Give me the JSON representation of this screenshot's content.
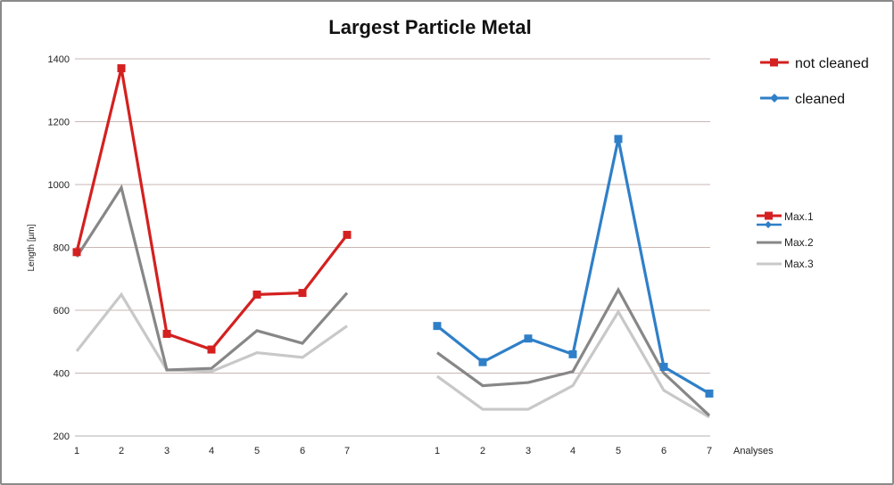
{
  "chart_data": {
    "type": "line",
    "title": "Largest Particle Metal",
    "ylabel": "Length [µm]",
    "xlabel": "Analyses",
    "ylim": [
      200,
      1400
    ],
    "yticks": [
      200,
      400,
      600,
      800,
      1000,
      1200,
      1400
    ],
    "grid": "horizontal",
    "groups": [
      {
        "name": "not cleaned",
        "color": "#d42020",
        "categories": [
          "1",
          "2",
          "3",
          "4",
          "5",
          "6",
          "7"
        ],
        "series": [
          {
            "values": [
              785,
              1370,
              525,
              475,
              650,
              655,
              840
            ]
          },
          {
            "values": [
              770,
              990,
              410,
              415,
              535,
              495,
              655
            ]
          },
          {
            "values": [
              470,
              650,
              410,
              405,
              465,
              450,
              550
            ]
          }
        ]
      },
      {
        "name": "cleaned",
        "color": "#2f7fc8",
        "categories": [
          "1",
          "2",
          "3",
          "4",
          "5",
          "6",
          "7"
        ],
        "series": [
          {
            "values": [
              550,
              435,
              510,
              460,
              1145,
              420,
              335
            ]
          },
          {
            "values": [
              465,
              360,
              370,
              405,
              665,
              400,
              265
            ]
          },
          {
            "values": [
              390,
              285,
              285,
              360,
              595,
              345,
              260
            ]
          }
        ]
      }
    ],
    "series_styles": [
      {
        "name": "Max.1",
        "color": "#d42020"
      },
      {
        "name": "Max.2",
        "color": "#878787"
      },
      {
        "name": "Max.3",
        "color": "#c8c8c8"
      }
    ],
    "legend_groups": [
      {
        "label": "not cleaned",
        "color": "#d42020"
      },
      {
        "label": "cleaned",
        "color": "#2f7fc8"
      }
    ],
    "legend_series": [
      {
        "label": "Max.1",
        "color": "#d42020",
        "color2": "#2f7fc8"
      },
      {
        "label": "Max.2",
        "color": "#878787"
      },
      {
        "label": "Max.3",
        "color": "#c8c8c8"
      }
    ]
  }
}
